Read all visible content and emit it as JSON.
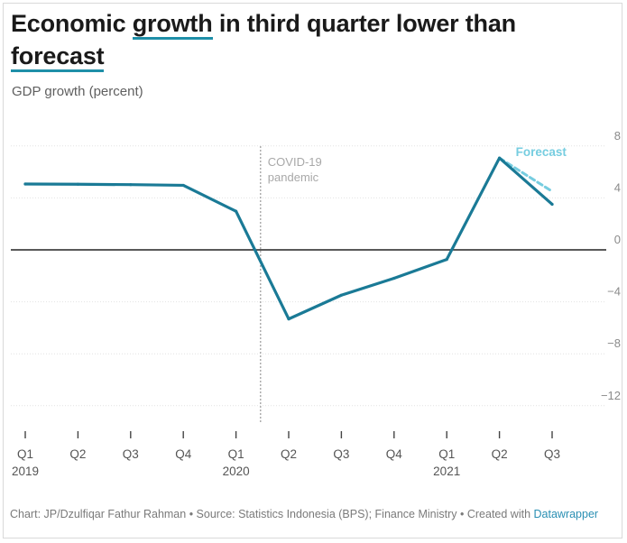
{
  "title": {
    "part1": "Economic ",
    "highlight1": "growth",
    "part2": " in third quarter lower than ",
    "highlight2": "forecast"
  },
  "subtitle": "GDP growth (percent)",
  "footer": {
    "text": "Chart: JP/Dzulfiqar Fathur Rahman • Source: Statistics Indonesia (BPS); Finance Ministry • Created with ",
    "link": "Datawrapper"
  },
  "colors": {
    "line": "#1a7a96",
    "forecast": "#76cde0",
    "zero_line": "#222222",
    "grid": "#e2e2e2",
    "annotation": "#a8a8a8"
  },
  "chart_data": {
    "type": "line",
    "title": "Economic growth in third quarter lower than forecast",
    "ylabel": "GDP growth (percent)",
    "xlabel": "",
    "ylim": [
      -14,
      10
    ],
    "y_ticks": [
      8,
      4,
      0,
      -4,
      -8,
      -12
    ],
    "y_tick_labels": [
      "8",
      "4",
      "0",
      "−4",
      "−8",
      "−12"
    ],
    "x_labels": [
      {
        "quarter": "Q1",
        "year": "2019"
      },
      {
        "quarter": "Q2",
        "year": ""
      },
      {
        "quarter": "Q3",
        "year": ""
      },
      {
        "quarter": "Q4",
        "year": ""
      },
      {
        "quarter": "Q1",
        "year": "2020"
      },
      {
        "quarter": "Q2",
        "year": ""
      },
      {
        "quarter": "Q3",
        "year": ""
      },
      {
        "quarter": "Q4",
        "year": ""
      },
      {
        "quarter": "Q1",
        "year": "2021"
      },
      {
        "quarter": "Q2",
        "year": ""
      },
      {
        "quarter": "Q3",
        "year": ""
      }
    ],
    "series": [
      {
        "values": [
          5.07,
          5.05,
          5.02,
          4.97,
          2.97,
          -5.32,
          -3.49,
          -2.19,
          -0.74,
          7.07,
          3.51
        ]
      },
      {
        "name": "Forecast",
        "from_index": 9,
        "to_index": 10,
        "values": [
          7.07,
          4.5
        ]
      }
    ],
    "annotations": [
      {
        "text": [
          "COVID-19",
          "pandemic"
        ],
        "at_index": 4.5
      }
    ],
    "grid": true,
    "legend": "none"
  }
}
